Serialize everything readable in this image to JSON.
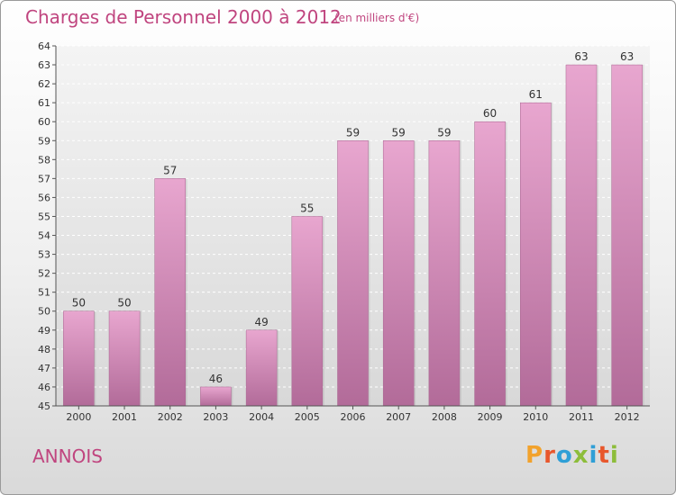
{
  "header": {
    "title": "Charges de Personnel 2000 à 2012",
    "unit": "(en milliers d'€)"
  },
  "footer": {
    "commune": "ANNOIS",
    "brand": "Proxiti"
  },
  "colors": {
    "title": "#c0457f",
    "bar_top": "#e8a6cf",
    "bar_bottom": "#b26b99",
    "logo_letters": [
      "#f2a22c",
      "#e8572c",
      "#2f9fd6",
      "#8dbd3a",
      "#2f9fd6",
      "#e8572c",
      "#8dbd3a"
    ]
  },
  "chart_data": {
    "type": "bar",
    "title": "Charges de Personnel 2000 à 2012",
    "subtitle": "(en milliers d'€)",
    "xlabel": "",
    "ylabel": "",
    "categories": [
      "2000",
      "2001",
      "2002",
      "2003",
      "2004",
      "2005",
      "2006",
      "2007",
      "2008",
      "2009",
      "2010",
      "2011",
      "2012"
    ],
    "values": [
      50,
      50,
      57,
      46,
      49,
      55,
      59,
      59,
      59,
      60,
      61,
      63,
      63
    ],
    "ylim": [
      45,
      64
    ],
    "yticks": [
      45,
      46,
      47,
      48,
      49,
      50,
      51,
      52,
      53,
      54,
      55,
      56,
      57,
      58,
      59,
      60,
      61,
      62,
      63,
      64
    ],
    "grid": true,
    "legend": "none"
  }
}
